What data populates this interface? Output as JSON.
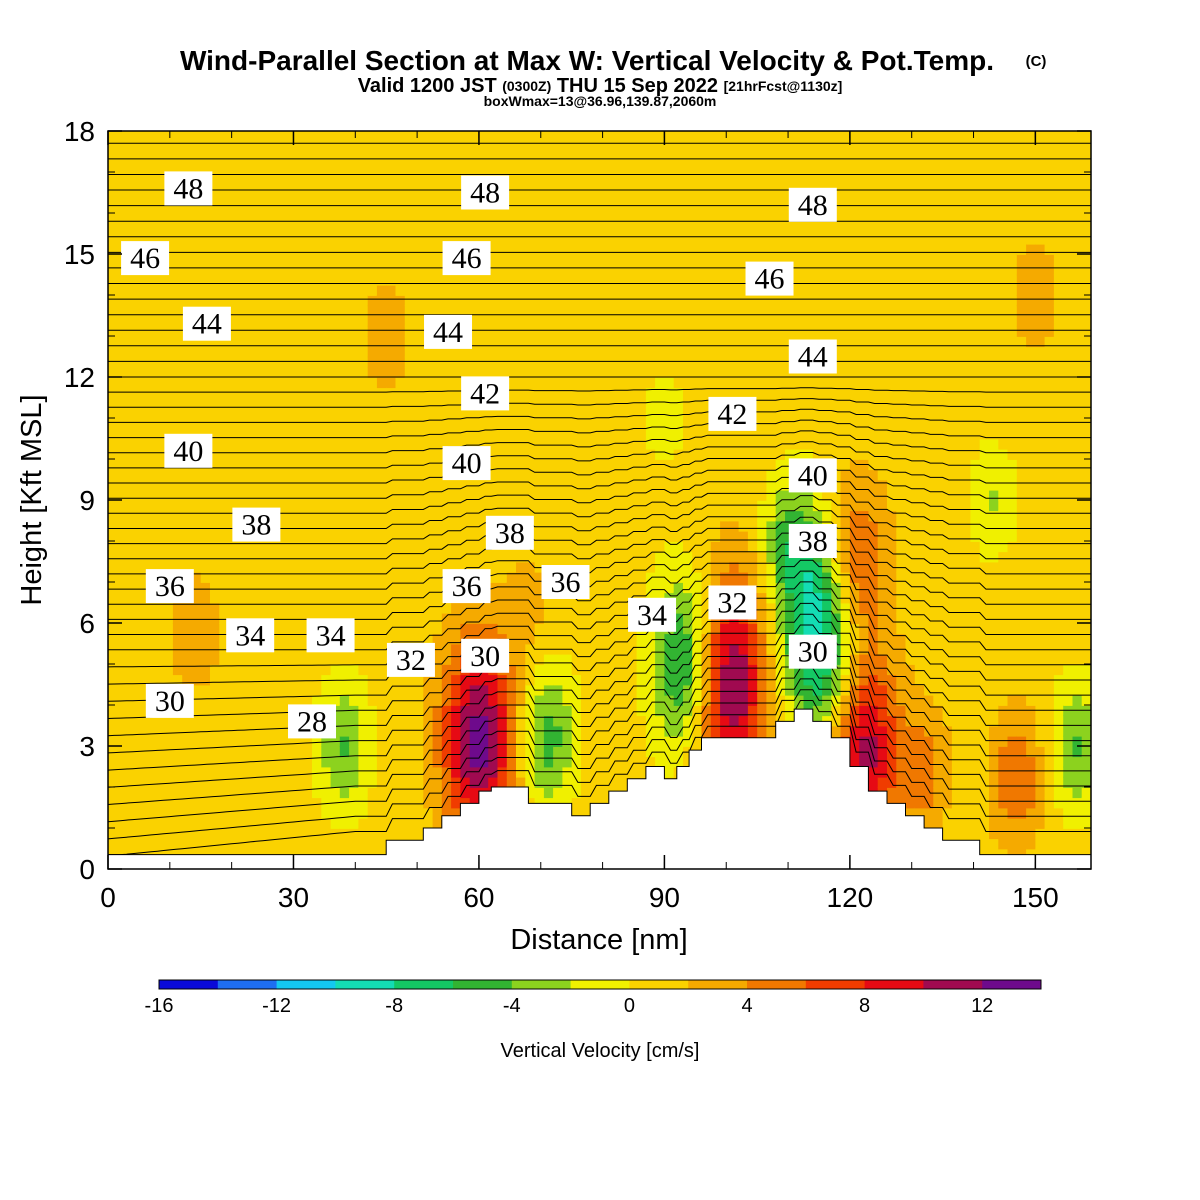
{
  "chart_data": {
    "type": "heatmap",
    "title": "Wind-Parallel Section at Max W: Vertical Velocity & Pot.Temp.",
    "copyright_mark": "(C)",
    "subtitle": {
      "valid_prefix": "Valid 1200 JST",
      "utc": "(0300Z)",
      "date": "THU 15 Sep 2022",
      "forecast": "[21hrFcst@1130z]"
    },
    "subtitle2": "boxWmax=13@36.96,139.87,2060m",
    "xlabel": "Distance [nm]",
    "ylabel": "Height [Kft MSL]",
    "xlim": [
      0,
      159
    ],
    "ylim": [
      0,
      18
    ],
    "x_ticks": [
      "0",
      "30",
      "60",
      "90",
      "120",
      "150"
    ],
    "y_ticks": [
      "0",
      "3",
      "6",
      "9",
      "12",
      "15",
      "18"
    ],
    "colorbar": {
      "label": "Vertical Velocity [cm/s]",
      "bounds": [
        -16,
        14
      ],
      "step": 2,
      "tick_labels": [
        "-16",
        "-12",
        "-8",
        "-4",
        "0",
        "4",
        "8",
        "12"
      ],
      "colors": [
        "#0a0ad8",
        "#1e6ef0",
        "#14c8f0",
        "#14dcb4",
        "#14c864",
        "#32b432",
        "#8cd21e",
        "#f0f000",
        "#fad200",
        "#f5aa00",
        "#f07800",
        "#f03c00",
        "#e60a14",
        "#a00a50",
        "#6e0a8c"
      ]
    },
    "terrain": {
      "distance_nm": [
        0,
        45,
        45,
        51,
        51,
        54,
        54,
        57,
        57,
        60,
        60,
        62,
        62,
        68,
        68,
        75,
        75,
        78,
        78,
        81,
        81,
        84,
        84,
        87,
        87,
        90,
        90,
        92,
        92,
        94,
        94,
        96,
        96,
        108,
        108,
        111,
        111,
        114,
        114,
        117,
        117,
        120,
        120,
        123,
        123,
        126,
        126,
        129,
        129,
        132,
        132,
        135,
        135,
        138,
        138,
        141,
        141,
        156,
        156,
        159
      ],
      "height_kft": [
        0.35,
        0.35,
        0.7,
        0.7,
        1.0,
        1.0,
        1.3,
        1.3,
        1.6,
        1.6,
        1.9,
        1.9,
        2.0,
        2.0,
        1.6,
        1.6,
        1.3,
        1.3,
        1.6,
        1.6,
        1.9,
        1.9,
        2.2,
        2.2,
        2.5,
        2.5,
        2.2,
        2.2,
        2.5,
        2.5,
        2.9,
        2.9,
        3.2,
        3.2,
        3.6,
        3.6,
        3.9,
        3.9,
        3.6,
        3.6,
        3.2,
        3.2,
        2.5,
        2.5,
        1.9,
        1.9,
        1.6,
        1.6,
        1.3,
        1.3,
        1.0,
        1.0,
        0.7,
        0.7,
        0.7,
        0.7,
        0.35,
        0.35,
        0.35,
        0.35
      ]
    },
    "vertical_velocity_features": [
      {
        "x_nm": 60,
        "y_kft": 3.2,
        "peak_cm_s": 12
      },
      {
        "x_nm": 100,
        "y_kft": 4.6,
        "peak_cm_s": 13
      },
      {
        "x_nm": 120,
        "y_kft": 7.2,
        "peak_cm_s": 10
      },
      {
        "x_nm": 122,
        "y_kft": 3.0,
        "peak_cm_s": 11
      },
      {
        "x_nm": 116,
        "y_kft": 6.0,
        "peak_cm_s": -14
      },
      {
        "x_nm": 94,
        "y_kft": 5.0,
        "peak_cm_s": -10
      },
      {
        "x_nm": 71,
        "y_kft": 3.2,
        "peak_cm_s": -6
      },
      {
        "x_nm": 38,
        "y_kft": 3.0,
        "peak_cm_s": -5
      },
      {
        "x_nm": 157,
        "y_kft": 3.0,
        "peak_cm_s": -5
      },
      {
        "x_nm": 143,
        "y_kft": 9.0,
        "peak_cm_s": -3
      },
      {
        "x_nm": 14,
        "y_kft": 5.8,
        "peak_cm_s": 3
      },
      {
        "x_nm": 45,
        "y_kft": 13.0,
        "peak_cm_s": 3
      },
      {
        "x_nm": 150,
        "y_kft": 14.0,
        "peak_cm_s": 3
      },
      {
        "x_nm": 147,
        "y_kft": 2.2,
        "peak_cm_s": 5
      },
      {
        "x_nm": 132,
        "y_kft": 2.4,
        "peak_cm_s": 4
      },
      {
        "x_nm": 68,
        "y_kft": 6.5,
        "peak_cm_s": 2
      },
      {
        "x_nm": 90,
        "y_kft": 11.0,
        "peak_cm_s": -2
      },
      {
        "x_nm": 110,
        "y_kft": 8.0,
        "peak_cm_s": -4
      }
    ],
    "theta_contour_labels": [
      {
        "text": "48",
        "x_nm": 13,
        "y_kft": 16.6
      },
      {
        "text": "48",
        "x_nm": 61,
        "y_kft": 16.5
      },
      {
        "text": "48",
        "x_nm": 114,
        "y_kft": 16.2
      },
      {
        "text": "46",
        "x_nm": 6,
        "y_kft": 14.9
      },
      {
        "text": "46",
        "x_nm": 58,
        "y_kft": 14.9
      },
      {
        "text": "46",
        "x_nm": 107,
        "y_kft": 14.4
      },
      {
        "text": "44",
        "x_nm": 16,
        "y_kft": 13.3
      },
      {
        "text": "44",
        "x_nm": 55,
        "y_kft": 13.1
      },
      {
        "text": "44",
        "x_nm": 114,
        "y_kft": 12.5
      },
      {
        "text": "42",
        "x_nm": 61,
        "y_kft": 11.6
      },
      {
        "text": "42",
        "x_nm": 101,
        "y_kft": 11.1
      },
      {
        "text": "40",
        "x_nm": 13,
        "y_kft": 10.2
      },
      {
        "text": "40",
        "x_nm": 58,
        "y_kft": 9.9
      },
      {
        "text": "40",
        "x_nm": 114,
        "y_kft": 9.6
      },
      {
        "text": "38",
        "x_nm": 24,
        "y_kft": 8.4
      },
      {
        "text": "38",
        "x_nm": 65,
        "y_kft": 8.2
      },
      {
        "text": "38",
        "x_nm": 114,
        "y_kft": 8.0
      },
      {
        "text": "36",
        "x_nm": 10,
        "y_kft": 6.9
      },
      {
        "text": "36",
        "x_nm": 58,
        "y_kft": 6.9
      },
      {
        "text": "36",
        "x_nm": 74,
        "y_kft": 7.0
      },
      {
        "text": "34",
        "x_nm": 23,
        "y_kft": 5.7
      },
      {
        "text": "34",
        "x_nm": 36,
        "y_kft": 5.7
      },
      {
        "text": "34",
        "x_nm": 88,
        "y_kft": 6.2
      },
      {
        "text": "32",
        "x_nm": 49,
        "y_kft": 5.1
      },
      {
        "text": "32",
        "x_nm": 101,
        "y_kft": 6.5
      },
      {
        "text": "30",
        "x_nm": 61,
        "y_kft": 5.2
      },
      {
        "text": "30",
        "x_nm": 114,
        "y_kft": 5.3
      },
      {
        "text": "30",
        "x_nm": 10,
        "y_kft": 4.1
      },
      {
        "text": "28",
        "x_nm": 33,
        "y_kft": 3.6
      }
    ],
    "grid": false,
    "legend": "colorbar-bottom"
  }
}
